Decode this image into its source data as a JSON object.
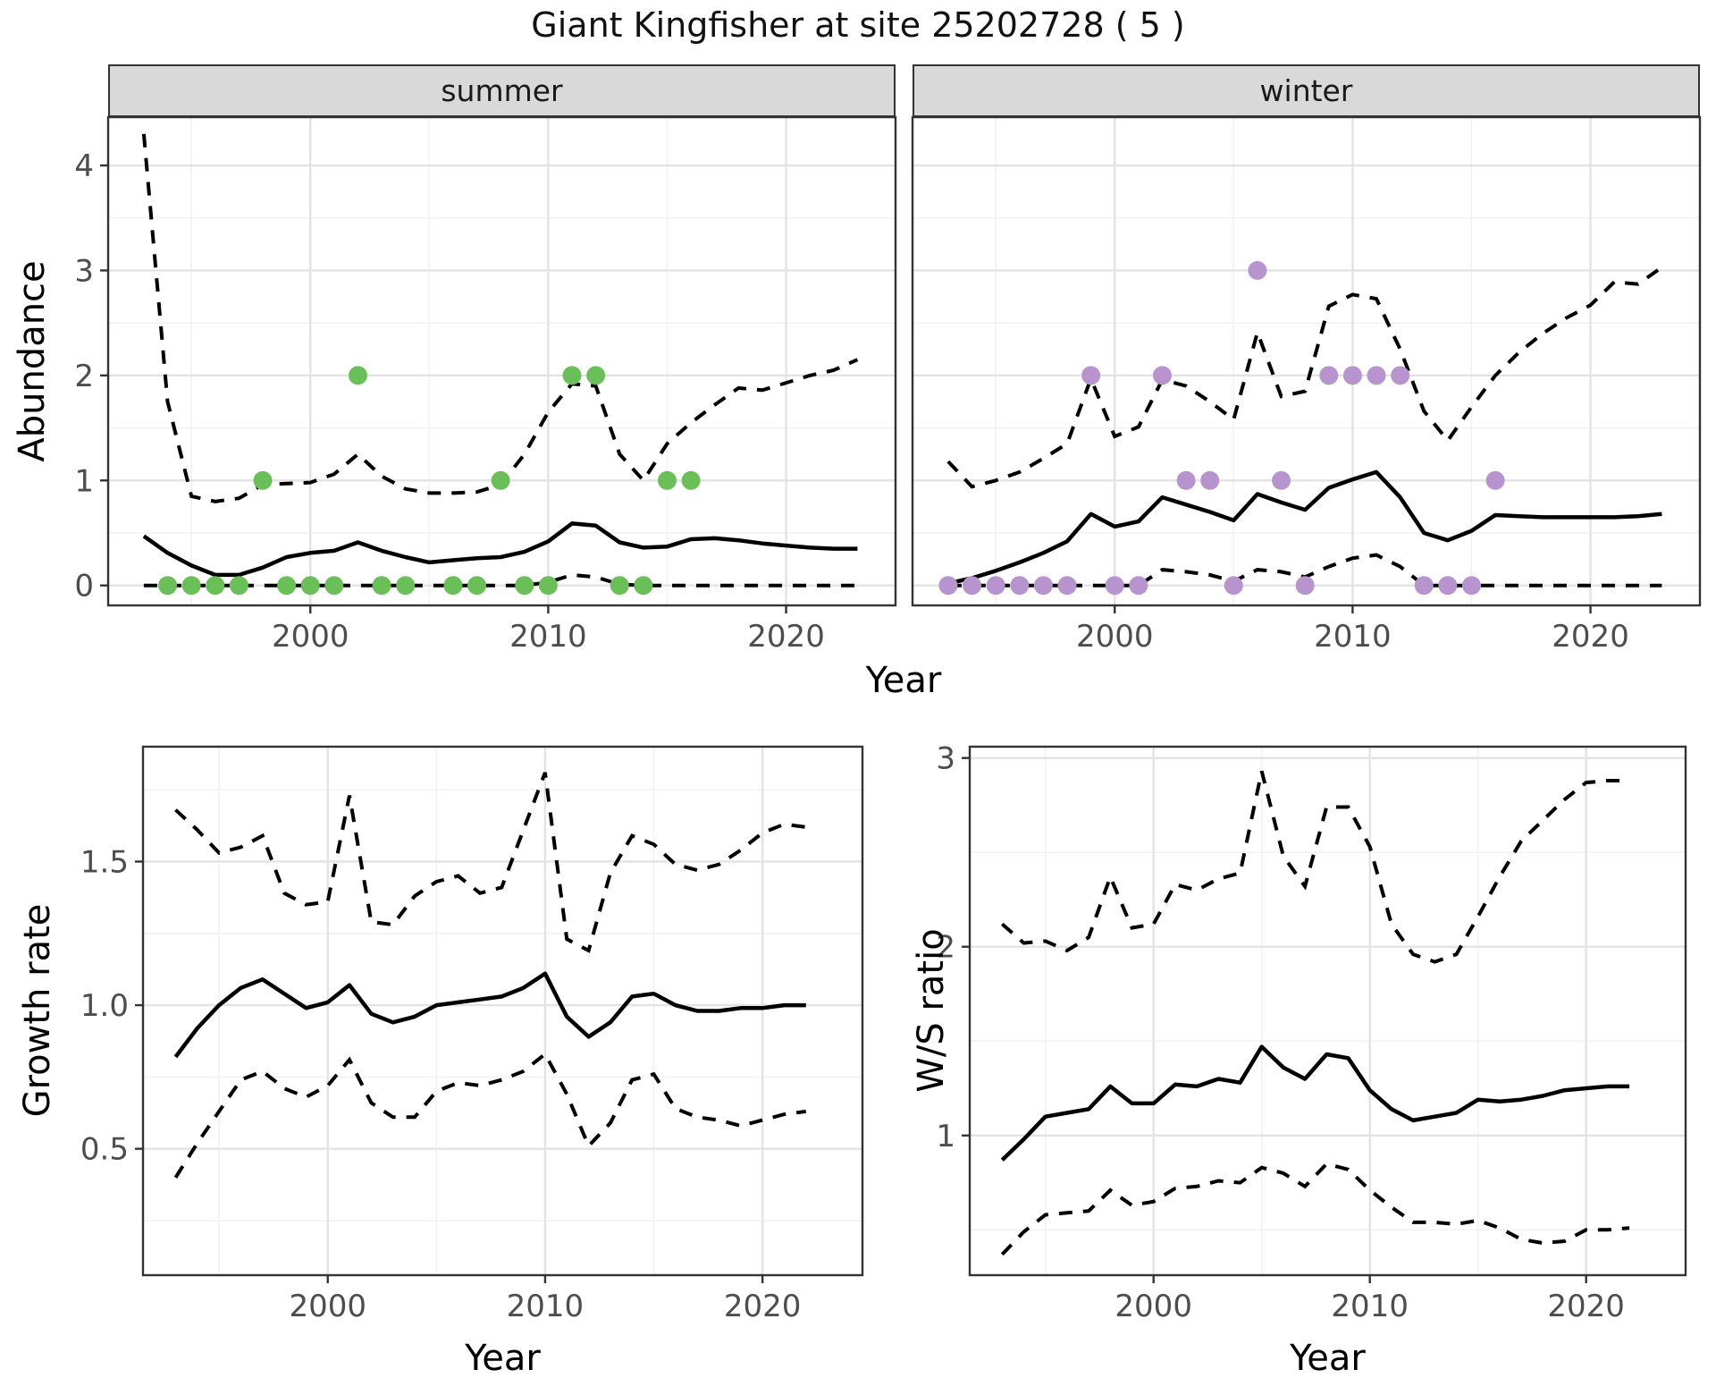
{
  "title": "Giant Kingfisher at site 25202728 ( 5 )",
  "facets": {
    "summer": "summer",
    "winter": "winter"
  },
  "axis_titles": {
    "x": "Year",
    "abundance": "Abundance",
    "growth": "Growth rate",
    "ws": "W/S ratio"
  },
  "colors": {
    "point_summer": "#6BBF59",
    "point_winter": "#B894CE",
    "line": "#000000",
    "strip_bg": "#D9D9D9",
    "grid_major": "#E3E3E3",
    "grid_minor": "#F2F2F2",
    "panel_border": "#333333",
    "tick_mark": "#333333",
    "tick_label": "#4D4D4D"
  },
  "chart_data": [
    {
      "id": "abundance_summer",
      "type": "line",
      "title": "summer",
      "xlabel": "Year",
      "ylabel": "Abundance",
      "xlim": [
        1991.5,
        2024.6
      ],
      "ylim": [
        -0.19,
        4.46
      ],
      "xticks": [
        2000,
        2010,
        2020
      ],
      "xminor": [
        1995,
        2005,
        2015
      ],
      "ytick_vals": [
        0,
        1,
        2,
        3,
        4
      ],
      "ytick_labels": [
        "0",
        "1",
        "2",
        "3",
        "4"
      ],
      "yminor": [
        0.5,
        1.5,
        2.5,
        3.5
      ],
      "years": [
        1993,
        1994,
        1995,
        1996,
        1997,
        1998,
        1999,
        2000,
        2001,
        2002,
        2003,
        2004,
        2005,
        2006,
        2007,
        2008,
        2009,
        2010,
        2011,
        2012,
        2013,
        2014,
        2015,
        2016,
        2017,
        2018,
        2019,
        2020,
        2021,
        2022,
        2023
      ],
      "median": [
        0.47,
        0.31,
        0.19,
        0.1,
        0.1,
        0.17,
        0.27,
        0.31,
        0.33,
        0.41,
        0.33,
        0.27,
        0.22,
        0.24,
        0.26,
        0.27,
        0.32,
        0.42,
        0.59,
        0.57,
        0.41,
        0.36,
        0.37,
        0.44,
        0.45,
        0.43,
        0.4,
        0.38,
        0.36,
        0.35,
        0.35
      ],
      "upper": [
        4.3,
        1.75,
        0.85,
        0.8,
        0.83,
        0.96,
        0.97,
        0.98,
        1.06,
        1.25,
        1.04,
        0.92,
        0.88,
        0.88,
        0.89,
        0.96,
        1.25,
        1.65,
        1.92,
        1.9,
        1.25,
        1.0,
        1.35,
        1.55,
        1.72,
        1.88,
        1.86,
        1.93,
        2.0,
        2.05,
        2.15
      ],
      "lower": [
        0,
        0,
        0,
        0,
        0,
        0,
        0,
        0,
        0,
        0,
        0,
        0,
        0,
        0,
        0,
        0,
        0,
        0.03,
        0.1,
        0.08,
        0.01,
        0,
        0,
        0,
        0,
        0,
        0,
        0,
        0,
        0,
        0
      ],
      "points": {
        "x": [
          1994,
          1995,
          1996,
          1997,
          1998,
          1999,
          2000,
          2001,
          2002,
          2003,
          2004,
          2006,
          2007,
          2008,
          2009,
          2010,
          2011,
          2012,
          2013,
          2014,
          2015,
          2016
        ],
        "y": [
          0,
          0,
          0,
          0,
          1,
          0,
          0,
          0,
          2,
          0,
          0,
          0,
          0,
          1,
          0,
          0,
          2,
          2,
          0,
          0,
          1,
          1
        ]
      },
      "point_color": "#6BBF59"
    },
    {
      "id": "abundance_winter",
      "type": "line",
      "title": "winter",
      "xlabel": "Year",
      "ylabel": "Abundance",
      "xlim": [
        1991.5,
        2024.6
      ],
      "ylim": [
        -0.19,
        4.46
      ],
      "xticks": [
        2000,
        2010,
        2020
      ],
      "xminor": [
        1995,
        2005,
        2015
      ],
      "ytick_vals": [
        0,
        1,
        2,
        3,
        4
      ],
      "ytick_labels": [
        "0",
        "1",
        "2",
        "3",
        "4"
      ],
      "yminor": [
        0.5,
        1.5,
        2.5,
        3.5
      ],
      "years": [
        1993,
        1994,
        1995,
        1996,
        1997,
        1998,
        1999,
        2000,
        2001,
        2002,
        2003,
        2004,
        2005,
        2006,
        2007,
        2008,
        2009,
        2010,
        2011,
        2012,
        2013,
        2014,
        2015,
        2016,
        2017,
        2018,
        2019,
        2020,
        2021,
        2022,
        2023
      ],
      "median": [
        0.02,
        0.07,
        0.14,
        0.22,
        0.31,
        0.42,
        0.68,
        0.56,
        0.61,
        0.84,
        0.77,
        0.7,
        0.62,
        0.87,
        0.79,
        0.72,
        0.93,
        1.01,
        1.08,
        0.84,
        0.5,
        0.43,
        0.52,
        0.67,
        0.66,
        0.65,
        0.65,
        0.65,
        0.65,
        0.66,
        0.68
      ],
      "upper": [
        1.18,
        0.94,
        1.0,
        1.08,
        1.21,
        1.35,
        1.97,
        1.42,
        1.51,
        1.96,
        1.9,
        1.75,
        1.58,
        2.41,
        1.8,
        1.85,
        2.66,
        2.77,
        2.73,
        2.25,
        1.66,
        1.38,
        1.7,
        2.0,
        2.22,
        2.4,
        2.55,
        2.67,
        2.89,
        2.87,
        3.03
      ],
      "lower": [
        0,
        0,
        0,
        0,
        0,
        0,
        0,
        0,
        0,
        0.15,
        0.13,
        0.1,
        0.04,
        0.15,
        0.13,
        0.08,
        0.18,
        0.26,
        0.29,
        0.18,
        0,
        0,
        0,
        0,
        0,
        0,
        0,
        0,
        0,
        0,
        0
      ],
      "points": {
        "x": [
          1993,
          1994,
          1995,
          1996,
          1997,
          1998,
          1999,
          2000,
          2001,
          2002,
          2003,
          2004,
          2005,
          2006,
          2007,
          2008,
          2009,
          2010,
          2011,
          2012,
          2013,
          2014,
          2015,
          2016
        ],
        "y": [
          0,
          0,
          0,
          0,
          0,
          0,
          2,
          0,
          0,
          2,
          1,
          1,
          0,
          3,
          1,
          0,
          2,
          2,
          2,
          2,
          0,
          0,
          0,
          1
        ]
      },
      "point_color": "#B894CE"
    },
    {
      "id": "growth_rate",
      "type": "line",
      "title": "Growth rate",
      "xlabel": "Year",
      "ylabel": "Growth rate",
      "xlim": [
        1991.5,
        2024.6
      ],
      "ylim": [
        0.06,
        1.9
      ],
      "xticks": [
        2000,
        2010,
        2020
      ],
      "xminor": [
        1995,
        2005,
        2015
      ],
      "ytick_vals": [
        0.5,
        1.0,
        1.5
      ],
      "ytick_labels": [
        "0.5",
        "1.0",
        "1.5"
      ],
      "yminor": [
        0.25,
        0.75,
        1.25,
        1.75
      ],
      "years": [
        1993,
        1994,
        1995,
        1996,
        1997,
        1998,
        1999,
        2000,
        2001,
        2002,
        2003,
        2004,
        2005,
        2006,
        2007,
        2008,
        2009,
        2010,
        2011,
        2012,
        2013,
        2014,
        2015,
        2016,
        2017,
        2018,
        2019,
        2020,
        2021,
        2022
      ],
      "median": [
        0.82,
        0.92,
        1.0,
        1.06,
        1.09,
        1.04,
        0.99,
        1.01,
        1.07,
        0.97,
        0.94,
        0.96,
        1.0,
        1.01,
        1.02,
        1.03,
        1.06,
        1.11,
        0.96,
        0.89,
        0.94,
        1.03,
        1.04,
        1.0,
        0.98,
        0.98,
        0.99,
        0.99,
        1.0,
        1.0
      ],
      "upper": [
        1.68,
        1.61,
        1.53,
        1.55,
        1.59,
        1.39,
        1.35,
        1.36,
        1.73,
        1.29,
        1.28,
        1.38,
        1.43,
        1.45,
        1.39,
        1.41,
        1.61,
        1.81,
        1.23,
        1.19,
        1.46,
        1.59,
        1.56,
        1.49,
        1.47,
        1.49,
        1.54,
        1.6,
        1.63,
        1.62
      ],
      "lower": [
        0.4,
        0.52,
        0.63,
        0.74,
        0.77,
        0.71,
        0.68,
        0.72,
        0.81,
        0.66,
        0.61,
        0.61,
        0.7,
        0.73,
        0.72,
        0.74,
        0.77,
        0.83,
        0.69,
        0.51,
        0.59,
        0.74,
        0.76,
        0.64,
        0.61,
        0.6,
        0.58,
        0.6,
        0.62,
        0.63
      ],
      "points": null,
      "point_color": null
    },
    {
      "id": "ws_ratio",
      "type": "line",
      "title": "W/S ratio",
      "xlabel": "Year",
      "ylabel": "W/S ratio",
      "xlim": [
        1991.5,
        2024.6
      ],
      "ylim": [
        0.26,
        3.06
      ],
      "xticks": [
        2000,
        2010,
        2020
      ],
      "xminor": [
        1995,
        2005,
        2015
      ],
      "ytick_vals": [
        1,
        2,
        3
      ],
      "ytick_labels": [
        "1",
        "2",
        "3"
      ],
      "yminor": [
        0.5,
        1.5,
        2.5
      ],
      "years": [
        1993,
        1994,
        1995,
        1996,
        1997,
        1998,
        1999,
        2000,
        2001,
        2002,
        2003,
        2004,
        2005,
        2006,
        2007,
        2008,
        2009,
        2010,
        2011,
        2012,
        2013,
        2014,
        2015,
        2016,
        2017,
        2018,
        2019,
        2020,
        2021,
        2022
      ],
      "median": [
        0.87,
        0.98,
        1.1,
        1.12,
        1.14,
        1.26,
        1.17,
        1.17,
        1.27,
        1.26,
        1.3,
        1.28,
        1.47,
        1.36,
        1.3,
        1.43,
        1.41,
        1.24,
        1.14,
        1.08,
        1.1,
        1.12,
        1.19,
        1.18,
        1.19,
        1.21,
        1.24,
        1.25,
        1.26,
        1.26
      ],
      "upper": [
        2.12,
        2.02,
        2.03,
        1.98,
        2.05,
        2.37,
        2.1,
        2.12,
        2.33,
        2.3,
        2.36,
        2.39,
        2.93,
        2.48,
        2.32,
        2.74,
        2.74,
        2.53,
        2.12,
        1.96,
        1.92,
        1.96,
        2.16,
        2.37,
        2.56,
        2.67,
        2.78,
        2.87,
        2.88,
        2.88
      ],
      "lower": [
        0.37,
        0.49,
        0.58,
        0.59,
        0.6,
        0.71,
        0.63,
        0.65,
        0.72,
        0.73,
        0.76,
        0.75,
        0.83,
        0.8,
        0.73,
        0.85,
        0.82,
        0.71,
        0.62,
        0.54,
        0.54,
        0.53,
        0.55,
        0.51,
        0.45,
        0.43,
        0.44,
        0.5,
        0.5,
        0.51
      ],
      "points": null,
      "point_color": null
    }
  ]
}
